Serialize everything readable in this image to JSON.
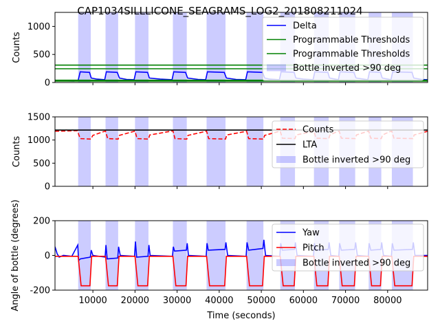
{
  "figure": {
    "title": "CAP1034SILLLICONE_SEAGRAMS_LOG2_201808211024",
    "xlabel": "Time (seconds)"
  },
  "chart_data": [
    {
      "type": "line",
      "ylabel": "Counts",
      "xlim": [
        1000,
        89500
      ],
      "ylim": [
        0,
        1250
      ],
      "yticks": [
        0,
        500,
        1000
      ],
      "xticks": [
        10000,
        20000,
        30000,
        40000,
        50000,
        60000,
        70000,
        80000
      ],
      "inverted_intervals": [
        [
          6500,
          9500
        ],
        [
          13000,
          16000
        ],
        [
          20000,
          23200
        ],
        [
          29000,
          32300
        ],
        [
          37000,
          41500
        ],
        [
          46500,
          50500
        ],
        [
          54500,
          58000
        ],
        [
          62500,
          66000
        ],
        [
          68500,
          72300
        ],
        [
          75500,
          78500
        ],
        [
          81000,
          86000
        ]
      ],
      "series": [
        {
          "name": "Delta",
          "color": "#0000ff",
          "x": [
            1000,
            3000,
            5500,
            6500,
            7000,
            9200,
            9600,
            11000,
            12800,
            13200,
            15800,
            16300,
            18000,
            19800,
            20200,
            23000,
            23400,
            26000,
            28800,
            29200,
            32000,
            32500,
            35000,
            36800,
            37200,
            41200,
            41700,
            44000,
            46300,
            46700,
            50300,
            50800,
            52000,
            54300,
            54700,
            57800,
            58200,
            60000,
            62300,
            62700,
            65800,
            66200,
            68300,
            68700,
            72000,
            72500,
            75300,
            75700,
            78300,
            78700,
            80800,
            81200,
            85800,
            86200,
            88000,
            89500
          ],
          "y": [
            40,
            30,
            25,
            40,
            190,
            180,
            80,
            60,
            50,
            190,
            180,
            80,
            55,
            50,
            190,
            180,
            80,
            60,
            50,
            190,
            180,
            80,
            55,
            50,
            190,
            180,
            80,
            55,
            50,
            190,
            180,
            80,
            60,
            50,
            190,
            180,
            80,
            60,
            50,
            190,
            180,
            80,
            50,
            190,
            180,
            80,
            50,
            190,
            180,
            80,
            50,
            190,
            180,
            80,
            55,
            50
          ]
        },
        {
          "name": "Programmable Thresholds",
          "color": "#008000",
          "x": [
            1000,
            89500
          ],
          "y": [
            310,
            310
          ]
        },
        {
          "name": "Programmable Thresholds",
          "color": "#008000",
          "x": [
            1000,
            89500
          ],
          "y": [
            245,
            245
          ]
        },
        {
          "name": "Programmable Thresholds",
          "color": "#008000",
          "x": [
            1000,
            89500
          ],
          "y": [
            40,
            40
          ]
        },
        {
          "name": "Programmable Thresholds",
          "color": "#008000",
          "x": [
            1000,
            89500
          ],
          "y": [
            25,
            25
          ]
        }
      ],
      "legend": {
        "placement": "upper right",
        "entries": [
          {
            "label": "Delta",
            "kind": "line",
            "color": "#0000ff"
          },
          {
            "label": "Programmable Thresholds",
            "kind": "line",
            "color": "#008000"
          },
          {
            "label": "Programmable Thresholds",
            "kind": "line",
            "color": "#008000"
          },
          {
            "label": "Bottle inverted >90 deg",
            "kind": "patch",
            "color": "#0000ff"
          }
        ]
      }
    },
    {
      "type": "line",
      "ylabel": "Counts",
      "xlim": [
        1000,
        89500
      ],
      "ylim": [
        0,
        1500
      ],
      "yticks": [
        0,
        500,
        1000,
        1500
      ],
      "xticks": [
        10000,
        20000,
        30000,
        40000,
        50000,
        60000,
        70000,
        80000
      ],
      "inverted_intervals": [
        [
          6500,
          9500
        ],
        [
          13000,
          16000
        ],
        [
          20000,
          23200
        ],
        [
          29000,
          32300
        ],
        [
          37000,
          41500
        ],
        [
          46500,
          50500
        ],
        [
          54500,
          58000
        ],
        [
          62500,
          66000
        ],
        [
          68500,
          72300
        ],
        [
          75500,
          78500
        ],
        [
          81000,
          86000
        ]
      ],
      "series": [
        {
          "name": "Counts",
          "color": "#ff0000",
          "dashed": true,
          "x": [
            1000,
            5500,
            6300,
            7000,
            9500,
            10000,
            12500,
            13000,
            13500,
            16000,
            16300,
            19500,
            20000,
            20500,
            23200,
            23500,
            28500,
            29000,
            29500,
            32300,
            32600,
            36500,
            37000,
            37500,
            41500,
            41800,
            46000,
            46500,
            47000,
            50500,
            50800,
            54000,
            54500,
            55000,
            58000,
            58300,
            62000,
            62500,
            63000,
            66000,
            66300,
            68000,
            68500,
            69000,
            72300,
            72600,
            75000,
            75500,
            76000,
            78500,
            78800,
            80500,
            81000,
            81500,
            86000,
            86300,
            89500
          ],
          "y": [
            1190,
            1200,
            1200,
            1030,
            1020,
            1100,
            1180,
            1190,
            1030,
            1020,
            1100,
            1180,
            1190,
            1030,
            1020,
            1110,
            1190,
            1200,
            1030,
            1020,
            1100,
            1180,
            1190,
            1030,
            1020,
            1110,
            1180,
            1190,
            1030,
            1020,
            1100,
            1180,
            1190,
            1040,
            1030,
            1110,
            1180,
            1190,
            1040,
            1030,
            1110,
            1180,
            1190,
            1040,
            1030,
            1110,
            1180,
            1190,
            1040,
            1030,
            1110,
            1180,
            1190,
            1040,
            1030,
            1110,
            1190
          ]
        },
        {
          "name": "LTA",
          "color": "#000000",
          "x": [
            1000,
            89500
          ],
          "y": [
            1215,
            1215
          ]
        }
      ],
      "legend": {
        "placement": "upper right",
        "entries": [
          {
            "label": "Counts",
            "kind": "dashed",
            "color": "#ff0000"
          },
          {
            "label": "LTA",
            "kind": "line",
            "color": "#000000"
          },
          {
            "label": "Bottle inverted >90 deg",
            "kind": "patch",
            "color": "#0000ff"
          }
        ]
      }
    },
    {
      "type": "line",
      "ylabel": "Angle of bottle (degrees)",
      "xlim": [
        1000,
        89500
      ],
      "ylim": [
        -200,
        200
      ],
      "yticks": [
        -200,
        0,
        200
      ],
      "xticks": [
        10000,
        20000,
        30000,
        40000,
        50000,
        60000,
        70000,
        80000
      ],
      "xticklabels": [
        "10000",
        "20000",
        "30000",
        "40000",
        "50000",
        "60000",
        "70000",
        "80000"
      ],
      "inverted_intervals": [
        [
          6500,
          9500
        ],
        [
          13000,
          16000
        ],
        [
          20000,
          23200
        ],
        [
          29000,
          32300
        ],
        [
          37000,
          41500
        ],
        [
          46500,
          50500
        ],
        [
          54500,
          58000
        ],
        [
          62500,
          66000
        ],
        [
          68500,
          72300
        ],
        [
          75500,
          78500
        ],
        [
          81000,
          86000
        ]
      ],
      "series": [
        {
          "name": "Yaw",
          "color": "#0000ff",
          "x": [
            1000,
            1500,
            2000,
            3000,
            5000,
            6400,
            6600,
            7000,
            9400,
            9600,
            10000,
            12900,
            13100,
            13400,
            15900,
            16100,
            16500,
            19900,
            20100,
            20400,
            23100,
            23300,
            23600,
            28900,
            29100,
            29400,
            32200,
            32400,
            32700,
            36900,
            37100,
            37400,
            41400,
            41600,
            42000,
            46400,
            46600,
            47000,
            50400,
            50600,
            51000,
            54400,
            54600,
            55000,
            57900,
            58100,
            58500,
            62400,
            62600,
            63000,
            65900,
            66100,
            66500,
            68400,
            68600,
            69000,
            72200,
            72400,
            72800,
            75400,
            75600,
            76000,
            78400,
            78600,
            79000,
            80900,
            81100,
            81500,
            85900,
            86100,
            86500,
            89500
          ],
          "y": [
            50,
            10,
            -10,
            0,
            -5,
            60,
            -30,
            -20,
            -10,
            30,
            0,
            -10,
            60,
            -20,
            -15,
            50,
            0,
            -5,
            80,
            -10,
            -5,
            60,
            0,
            -5,
            50,
            25,
            30,
            70,
            0,
            -5,
            70,
            30,
            35,
            75,
            0,
            -5,
            75,
            30,
            40,
            90,
            0,
            -5,
            70,
            30,
            35,
            75,
            0,
            -5,
            70,
            30,
            35,
            75,
            0,
            -5,
            70,
            30,
            35,
            75,
            0,
            -5,
            70,
            30,
            35,
            75,
            0,
            -5,
            70,
            30,
            35,
            75,
            0,
            0
          ]
        },
        {
          "name": "Pitch",
          "color": "#ff0000",
          "x": [
            1000,
            6500,
            7200,
            9300,
            9700,
            13000,
            13700,
            15800,
            16200,
            20000,
            20700,
            23000,
            23400,
            29000,
            29700,
            32100,
            32500,
            37000,
            37700,
            41300,
            41700,
            46500,
            47200,
            50300,
            50700,
            54500,
            55200,
            57800,
            58200,
            62500,
            63200,
            65800,
            66200,
            68500,
            69200,
            72100,
            72500,
            75500,
            76200,
            78300,
            78700,
            81000,
            81700,
            85800,
            86200,
            89500
          ],
          "y": [
            -5,
            -5,
            -175,
            -175,
            -5,
            -5,
            -175,
            -175,
            -5,
            -5,
            -175,
            -175,
            -5,
            -5,
            -175,
            -175,
            -5,
            -5,
            -175,
            -175,
            -5,
            -5,
            -175,
            -175,
            -5,
            -5,
            -175,
            -175,
            -5,
            -5,
            -175,
            -175,
            -5,
            -5,
            -175,
            -175,
            -5,
            -5,
            -175,
            -175,
            -5,
            -5,
            -175,
            -175,
            -5,
            -5
          ]
        }
      ],
      "legend": {
        "placement": "upper right",
        "entries": [
          {
            "label": "Yaw",
            "kind": "line",
            "color": "#0000ff"
          },
          {
            "label": "Pitch",
            "kind": "line",
            "color": "#ff0000"
          },
          {
            "label": "Bottle inverted >90 deg",
            "kind": "patch",
            "color": "#0000ff"
          }
        ]
      }
    }
  ]
}
